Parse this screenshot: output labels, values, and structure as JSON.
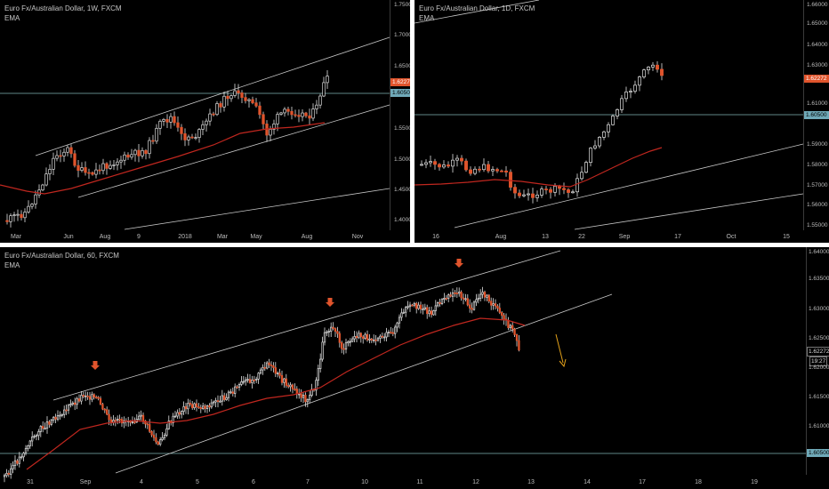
{
  "colors": {
    "background": "#000000",
    "candle_up_fill": "#000000",
    "candle_up_border": "#e0e0e0",
    "candle_down_fill": "#e0542c",
    "ema": "#c0271f",
    "channel": "#c8c8c8",
    "level_line": "#7fb3b3",
    "last_price_badge": "#e0542c",
    "level_badge": "#6fa9b8",
    "annotation_arrow": "#e0542c",
    "forecast_arrow": "#e3a11a"
  },
  "pane_weekly": {
    "title": "Euro Fx/Australian Dollar, 1W, FXCM",
    "indicator": "EMA",
    "y_labels": [
      "1.75000",
      "1.70000",
      "1.65000",
      "1.55000",
      "1.50000",
      "1.45000",
      "1.40000"
    ],
    "x_labels": [
      "Mar",
      "Jun",
      "Aug",
      "9",
      "2018",
      "Mar",
      "May",
      "Aug",
      "Nov"
    ],
    "last_price": "1.62272",
    "level_price": "1.60500"
  },
  "pane_daily": {
    "title": "Euro Fx/Australian Dollar, 1D, FXCM",
    "indicator": "EMA",
    "y_labels": [
      "1.66000",
      "1.65000",
      "1.64000",
      "1.63000",
      "1.61000",
      "1.59000",
      "1.58000",
      "1.57000",
      "1.56000",
      "1.55000"
    ],
    "x_labels": [
      "16",
      "Aug",
      "13",
      "22",
      "Sep",
      "17",
      "Oct",
      "15"
    ],
    "last_price": "1.62272",
    "level_price": "1.60500"
  },
  "pane_hourly": {
    "title": "Euro Fx/Australian Dollar, 60, FXCM",
    "indicator": "EMA",
    "y_labels": [
      "1.64000",
      "1.63500",
      "1.63000",
      "1.62500",
      "1.61500",
      "1.61000"
    ],
    "x_labels": [
      "31",
      "Sep",
      "4",
      "5",
      "6",
      "7",
      "10",
      "11",
      "12",
      "13",
      "14",
      "17",
      "18",
      "19"
    ],
    "last_price": "1.62272",
    "countdown": "19:27",
    "partial_label": "1.62000",
    "level_price": "1.60500"
  }
}
